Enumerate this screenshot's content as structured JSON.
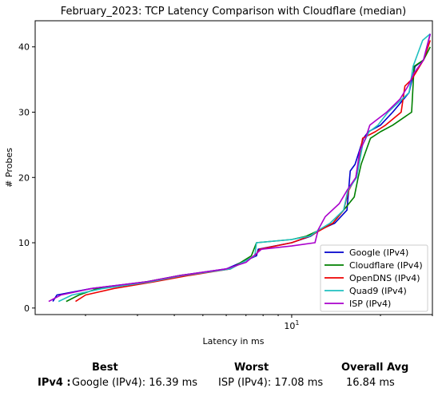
{
  "chart_data": {
    "type": "line",
    "title": "February_2023: TCP Latency Comparison with Cloudflare (median)",
    "xlabel": "Latency in ms",
    "ylabel": "# Probes",
    "xscale": "log",
    "xlim": [
      1.35,
      30
    ],
    "ylim": [
      -1,
      44
    ],
    "x_tick_labels": [
      "10^1"
    ],
    "y_ticks": [
      0,
      10,
      20,
      30,
      40
    ],
    "legend_position": "lower-right",
    "grid": false,
    "series": [
      {
        "name": "Google (IPv4)",
        "color": "#0000cc",
        "x": [
          1.55,
          1.6,
          2.1,
          3.2,
          4.2,
          6.0,
          7.6,
          7.7,
          10.0,
          11.6,
          12.5,
          14.0,
          15.4,
          15.8,
          16.4,
          17.5,
          18.2,
          20.0,
          22.0,
          25.0,
          26.2,
          28.0,
          29.5
        ],
        "y": [
          1,
          2,
          3,
          4,
          5,
          6,
          8,
          9,
          10,
          11,
          12,
          13,
          15,
          21,
          22,
          26,
          27,
          28,
          30,
          33,
          37,
          38,
          42
        ]
      },
      {
        "name": "Cloudflare (IPv4)",
        "color": "#008000",
        "x": [
          1.72,
          1.9,
          2.2,
          3.2,
          4.2,
          6.2,
          7.3,
          7.6,
          10.0,
          11.2,
          12.5,
          13.8,
          15.0,
          16.3,
          16.8,
          17.2,
          18.5,
          20.0,
          22.0,
          25.5,
          26.0,
          28.0,
          29.5
        ],
        "y": [
          1,
          2,
          3,
          4,
          5,
          6,
          8,
          10,
          10.5,
          11,
          12,
          13,
          15,
          17,
          20,
          22,
          26,
          27,
          28,
          30,
          37,
          38,
          40
        ]
      },
      {
        "name": "OpenDNS (IPv4)",
        "color": "#ee0000",
        "x": [
          1.85,
          2.0,
          2.5,
          3.4,
          4.5,
          6.2,
          7.5,
          7.8,
          10.0,
          11.5,
          12.6,
          13.8,
          15.0,
          15.6,
          16.5,
          17.4,
          19.2,
          20.8,
          23.5,
          24.2,
          25.5,
          28.0,
          29.5
        ],
        "y": [
          1,
          2,
          3,
          4,
          5,
          6,
          8,
          9,
          10,
          11,
          12,
          13,
          15,
          18,
          20,
          26,
          27,
          28,
          30,
          34,
          35,
          38,
          41
        ]
      },
      {
        "name": "Quad9 (IPv4)",
        "color": "#20c0c0",
        "x": [
          1.62,
          1.8,
          2.3,
          3.3,
          4.3,
          6.2,
          7.5,
          7.6,
          10.0,
          11.5,
          12.4,
          13.5,
          15.0,
          15.5,
          16.6,
          17.4,
          18.3,
          19.6,
          21.2,
          25.0,
          25.8,
          27.8,
          29.5
        ],
        "y": [
          1,
          2,
          3,
          4,
          5,
          6,
          8,
          10,
          10.5,
          11,
          12,
          13,
          15,
          18,
          20,
          25,
          27,
          28,
          30,
          33,
          37,
          41,
          42
        ]
      },
      {
        "name": "ISP (IPv4)",
        "color": "#aa00cc",
        "x": [
          1.5,
          1.65,
          2.1,
          3.2,
          4.2,
          6.0,
          7.0,
          7.9,
          10.0,
          12.0,
          12.3,
          13.0,
          14.5,
          15.4,
          16.5,
          17.0,
          17.8,
          18.4,
          21.0,
          23.3,
          24.8,
          26.0,
          28.0,
          29.5
        ],
        "y": [
          1,
          2,
          3,
          4,
          5,
          6,
          7,
          9,
          9.5,
          10,
          12,
          14,
          16,
          18,
          20,
          24,
          26,
          28,
          30,
          32,
          34,
          36,
          38,
          42
        ]
      }
    ]
  },
  "summary": {
    "best_header": "Best",
    "worst_header": "Worst",
    "avg_header": "Overall Avg",
    "row_label": "IPv4 :",
    "best_value": "Google (IPv4): 16.39 ms",
    "worst_value": "ISP (IPv4): 17.08 ms",
    "avg_value": "16.84 ms"
  }
}
